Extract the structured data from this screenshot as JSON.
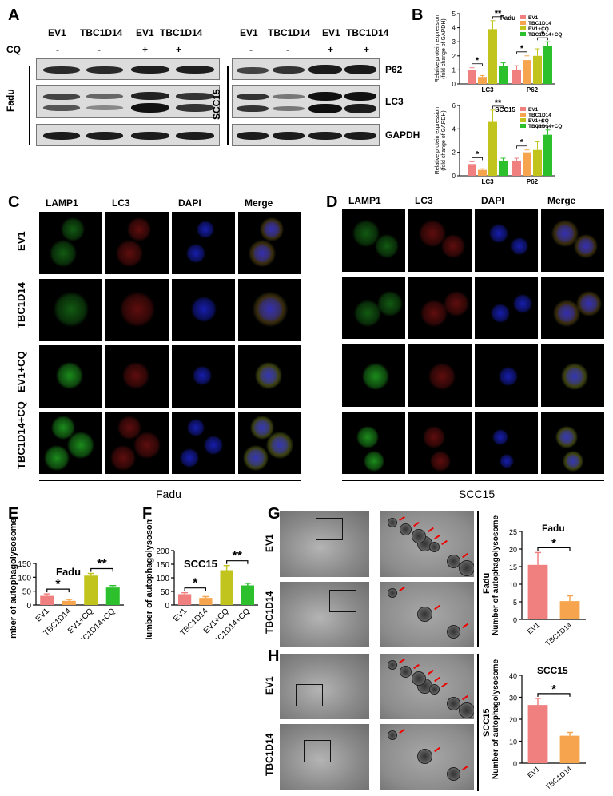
{
  "panels": {
    "A": "A",
    "B": "B",
    "C": "C",
    "D": "D",
    "E": "E",
    "F": "F",
    "G": "G",
    "H": "H"
  },
  "blot_A": {
    "lanes": [
      "EV1",
      "TBC1D14",
      "EV1",
      "TBC1D14"
    ],
    "cq_label": "CQ",
    "cq": [
      "-",
      "-",
      "+",
      "+"
    ],
    "left_cell": "Fadu",
    "right_cell": "SCC15",
    "proteins": [
      "P62",
      "LC3",
      "GAPDH"
    ]
  },
  "if_panels": {
    "channels": [
      "LAMP1",
      "LC3",
      "DAPI",
      "Merge"
    ],
    "rows": [
      "EV1",
      "TBC1D14",
      "EV1+CQ",
      "TBC1D14+CQ"
    ],
    "fadu": "Fadu",
    "scc15": "SCC15"
  },
  "em_panels": {
    "rows": [
      "EV1",
      "TBC1D14"
    ],
    "fadu": "Fadu",
    "scc15": "SCC15"
  },
  "colors": {
    "ev1": "#f08080",
    "tbc": "#f6a54e",
    "evcq": "#c2c41e",
    "tbccq": "#2cc02c"
  },
  "chart_data": [
    {
      "id": "B_fadu",
      "type": "bar",
      "title": "Fadu",
      "ylabel": "Relative protein expression (fold change of GAPDH)",
      "ylim": [
        0,
        5
      ],
      "yticks": [
        0,
        1,
        2,
        3,
        4,
        5
      ],
      "categories": [
        "LC3",
        "P62"
      ],
      "series": [
        {
          "name": "EV1",
          "values": [
            1.0,
            1.0
          ],
          "errors": [
            0.15,
            0.3
          ]
        },
        {
          "name": "TBC1D14",
          "values": [
            0.5,
            1.7
          ],
          "errors": [
            0.1,
            0.3
          ]
        },
        {
          "name": "EV1+CQ",
          "values": [
            3.9,
            2.0
          ],
          "errors": [
            0.6,
            0.5
          ]
        },
        {
          "name": "TBC1D14+CQ",
          "values": [
            1.3,
            2.7
          ],
          "errors": [
            0.2,
            0.3
          ]
        }
      ],
      "significance": [
        {
          "cat": 0,
          "a": 0,
          "b": 1,
          "label": "*"
        },
        {
          "cat": 0,
          "a": 2,
          "b": 3,
          "label": "**"
        },
        {
          "cat": 1,
          "a": 0,
          "b": 1,
          "label": "*"
        },
        {
          "cat": 1,
          "a": 2,
          "b": 3,
          "label": "*"
        }
      ]
    },
    {
      "id": "B_scc15",
      "type": "bar",
      "title": "SCC15",
      "ylabel": "Relative protein expression (fold change of GAPDH)",
      "ylim": [
        0,
        6
      ],
      "yticks": [
        0,
        2,
        4,
        6
      ],
      "categories": [
        "LC3",
        "P62"
      ],
      "series": [
        {
          "name": "EV1",
          "values": [
            1.0,
            1.3
          ],
          "errors": [
            0.2,
            0.2
          ]
        },
        {
          "name": "TBC1D14",
          "values": [
            0.5,
            2.0
          ],
          "errors": [
            0.1,
            0.2
          ]
        },
        {
          "name": "EV1+CQ",
          "values": [
            4.6,
            2.2
          ],
          "errors": [
            1.0,
            0.7
          ]
        },
        {
          "name": "TBC1D14+CQ",
          "values": [
            1.3,
            3.5
          ],
          "errors": [
            0.2,
            0.4
          ]
        }
      ],
      "significance": [
        {
          "cat": 0,
          "a": 0,
          "b": 1,
          "label": "*"
        },
        {
          "cat": 0,
          "a": 2,
          "b": 3,
          "label": "**"
        },
        {
          "cat": 1,
          "a": 0,
          "b": 1,
          "label": "*"
        },
        {
          "cat": 1,
          "a": 2,
          "b": 3,
          "label": "*"
        }
      ]
    },
    {
      "id": "E",
      "type": "bar",
      "title": "Fadu",
      "ylabel": "Number of autophagolysosome",
      "ylim": [
        0,
        150
      ],
      "yticks": [
        0,
        50,
        100,
        150
      ],
      "categories": [
        "EV1",
        "TBC1D14",
        "EV1+CQ",
        "TBC1D14+CQ"
      ],
      "values": [
        33,
        15,
        106,
        63
      ],
      "errors": [
        7,
        5,
        8,
        7
      ],
      "significance": [
        {
          "a": 0,
          "b": 1,
          "label": "*"
        },
        {
          "a": 2,
          "b": 3,
          "label": "**"
        }
      ]
    },
    {
      "id": "F",
      "type": "bar",
      "title": "SCC15",
      "ylabel": "Number of autophagolysosome",
      "ylim": [
        0,
        200
      ],
      "yticks": [
        0,
        50,
        100,
        150,
        200
      ],
      "categories": [
        "EV1",
        "TBC1D14",
        "EV1+CQ",
        "TBC1D14+CQ"
      ],
      "values": [
        40,
        26,
        128,
        72
      ],
      "errors": [
        5,
        5,
        17,
        8
      ],
      "significance": [
        {
          "a": 0,
          "b": 1,
          "label": "*"
        },
        {
          "a": 2,
          "b": 3,
          "label": "**"
        }
      ]
    },
    {
      "id": "G_chart",
      "type": "bar",
      "title": "Fadu",
      "ylabel": "Number of autophagolysosome",
      "ylim": [
        0,
        25
      ],
      "yticks": [
        0,
        5,
        10,
        15,
        20,
        25
      ],
      "categories": [
        "EV1",
        "TBC1D14"
      ],
      "values": [
        15.5,
        5.2
      ],
      "errors": [
        3.5,
        1.5
      ],
      "significance": [
        {
          "a": 0,
          "b": 1,
          "label": "*"
        }
      ]
    },
    {
      "id": "H_chart",
      "type": "bar",
      "title": "SCC15",
      "ylabel": "Number of autophagolysosome",
      "ylim": [
        0,
        40
      ],
      "yticks": [
        0,
        10,
        20,
        30,
        40
      ],
      "categories": [
        "EV1",
        "TBC1D14"
      ],
      "values": [
        26.5,
        12.5
      ],
      "errors": [
        3,
        1.5
      ],
      "significance": [
        {
          "a": 0,
          "b": 1,
          "label": "*"
        }
      ]
    }
  ]
}
